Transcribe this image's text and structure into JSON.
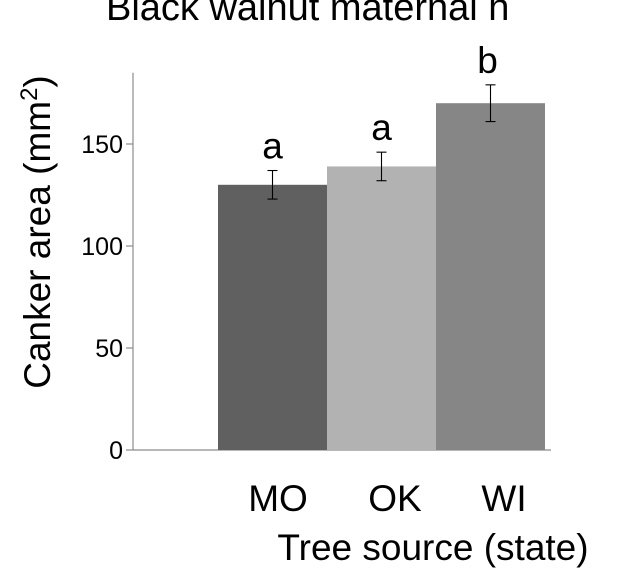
{
  "chart_data": {
    "type": "bar",
    "title": "Black walnut maternal h",
    "xlabel": "Tree source (state)",
    "ylabel": "Canker area (mm",
    "ylabel_superscript": "2",
    "ylabel_close": ")",
    "categories": [
      "MO",
      "OK",
      "WI"
    ],
    "values": [
      130,
      139,
      170
    ],
    "errors": [
      7,
      7,
      9
    ],
    "significance_letters": [
      "a",
      "a",
      "b"
    ],
    "bar_colors": [
      "#606060",
      "#b2b2b2",
      "#868686"
    ],
    "yticks": [
      0,
      50,
      100,
      150
    ],
    "ylim": [
      0,
      180
    ],
    "grid": false,
    "legend": "none"
  }
}
